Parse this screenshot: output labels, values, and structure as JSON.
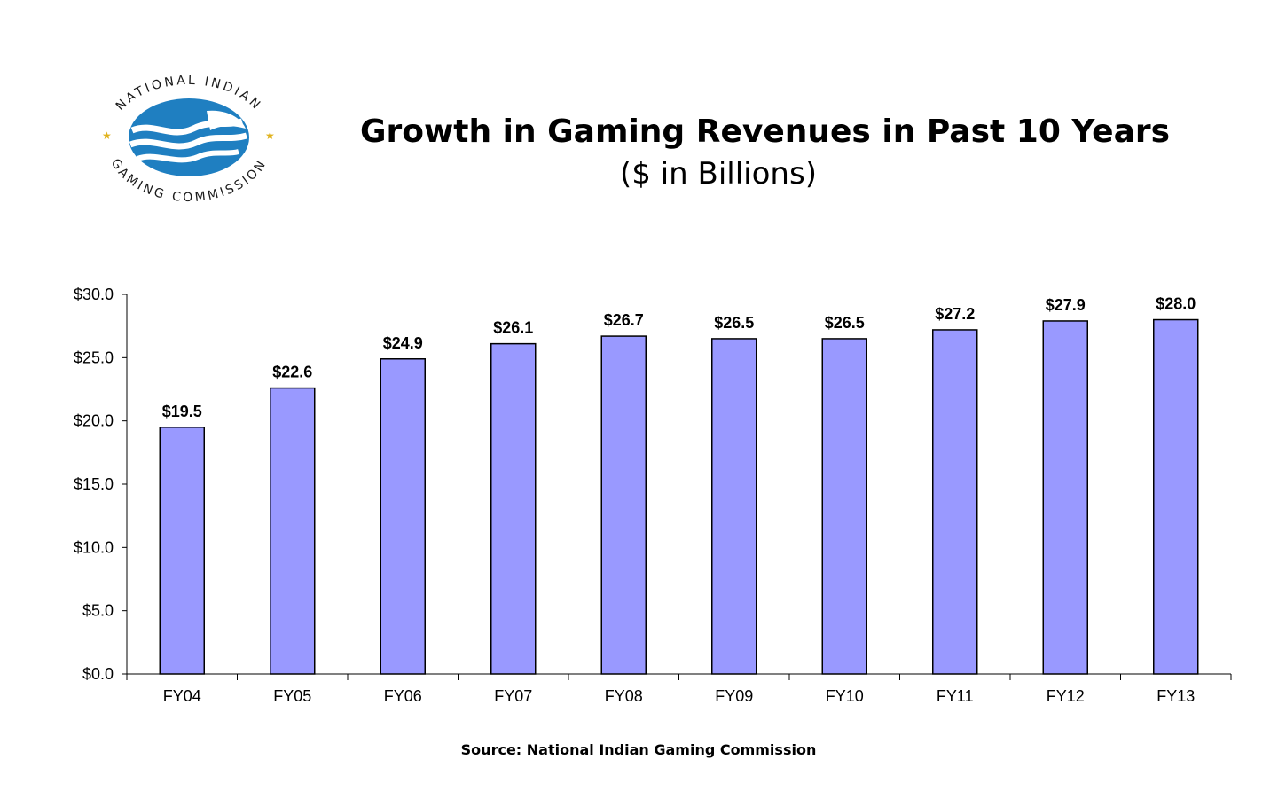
{
  "logo": {
    "top_text": "NATIONAL INDIAN",
    "bottom_text": "GAMING COMMISSION",
    "colors": {
      "ring_text": "#1a1a1a",
      "emblem": "#1f7fc1",
      "stars": "#e0b21c"
    }
  },
  "source_note": "Source: National Indian Gaming Commission",
  "colors": {
    "bar_fill": "#9999ff",
    "bar_stroke": "#000000",
    "axis": "#000000"
  },
  "chart_data": {
    "type": "bar",
    "title": "Growth in Gaming Revenues in Past 10 Years",
    "subtitle": "($ in Billions)",
    "categories": [
      "FY04",
      "FY05",
      "FY06",
      "FY07",
      "FY08",
      "FY09",
      "FY10",
      "FY11",
      "FY12",
      "FY13"
    ],
    "values": [
      19.5,
      22.6,
      24.9,
      26.1,
      26.7,
      26.5,
      26.5,
      27.2,
      27.9,
      28.0
    ],
    "data_labels": [
      "$19.5",
      "$22.6",
      "$24.9",
      "$26.1",
      "$26.7",
      "$26.5",
      "$26.5",
      "$27.2",
      "$27.9",
      "$28.0"
    ],
    "y_ticks": [
      0,
      5,
      10,
      15,
      20,
      25,
      30
    ],
    "y_tick_labels": [
      "$0.0",
      "$5.0",
      "$10.0",
      "$15.0",
      "$20.0",
      "$25.0",
      "$30.0"
    ],
    "ylim": [
      0,
      30
    ],
    "grid": false,
    "legend": "none"
  }
}
